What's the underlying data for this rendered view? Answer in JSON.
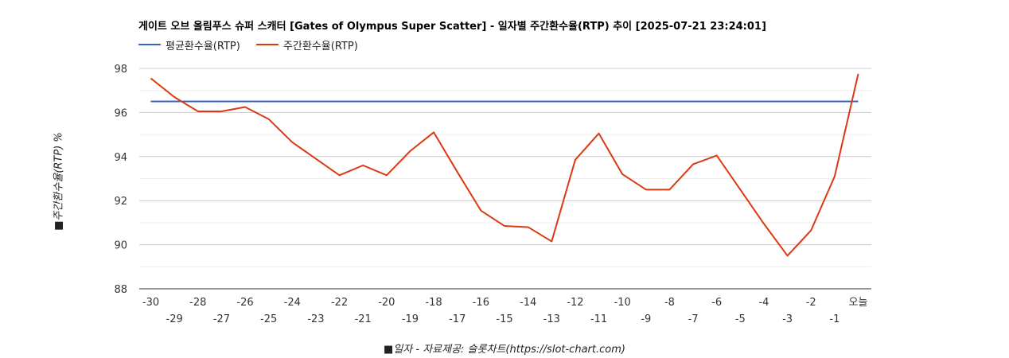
{
  "chart_data": {
    "type": "line",
    "title": "게이트 오브 올림푸스 슈퍼 스캐터 [Gates of Olympus Super Scatter] - 일자별 주간환수율(RTP) 추이 [2025-07-21 23:24:01]",
    "xlabel": "■일자 - 자료제공: 슬롯차트(https://slot-chart.com)",
    "ylabel": "■주간환수율(RTP) %",
    "categories": [
      "-30",
      "-29",
      "-28",
      "-27",
      "-26",
      "-25",
      "-24",
      "-23",
      "-22",
      "-21",
      "-20",
      "-19",
      "-18",
      "-17",
      "-16",
      "-15",
      "-14",
      "-13",
      "-12",
      "-11",
      "-10",
      "-9",
      "-8",
      "-7",
      "-6",
      "-5",
      "-4",
      "-3",
      "-2",
      "-1",
      "오늘"
    ],
    "ylim": [
      88,
      98
    ],
    "yticks": [
      "88",
      "90",
      "92",
      "94",
      "96",
      "98"
    ],
    "grid": true,
    "legend_position": "top-left",
    "series": [
      {
        "name": "평균환수율(RTP)",
        "color": "#3366cc",
        "values": [
          96.5,
          96.5,
          96.5,
          96.5,
          96.5,
          96.5,
          96.5,
          96.5,
          96.5,
          96.5,
          96.5,
          96.5,
          96.5,
          96.5,
          96.5,
          96.5,
          96.5,
          96.5,
          96.5,
          96.5,
          96.5,
          96.5,
          96.5,
          96.5,
          96.5,
          96.5,
          96.5,
          96.5,
          96.5,
          96.5,
          96.5
        ]
      },
      {
        "name": "주간환수율(RTP)",
        "color": "#dc3912",
        "values": [
          97.55,
          96.7,
          96.05,
          96.05,
          96.25,
          95.7,
          94.65,
          93.9,
          93.15,
          93.6,
          93.15,
          94.25,
          95.1,
          93.3,
          91.55,
          90.85,
          90.8,
          90.15,
          93.85,
          95.05,
          93.2,
          92.5,
          92.5,
          93.65,
          94.05,
          92.5,
          90.95,
          89.5,
          90.65,
          93.1,
          97.75
        ]
      }
    ]
  }
}
